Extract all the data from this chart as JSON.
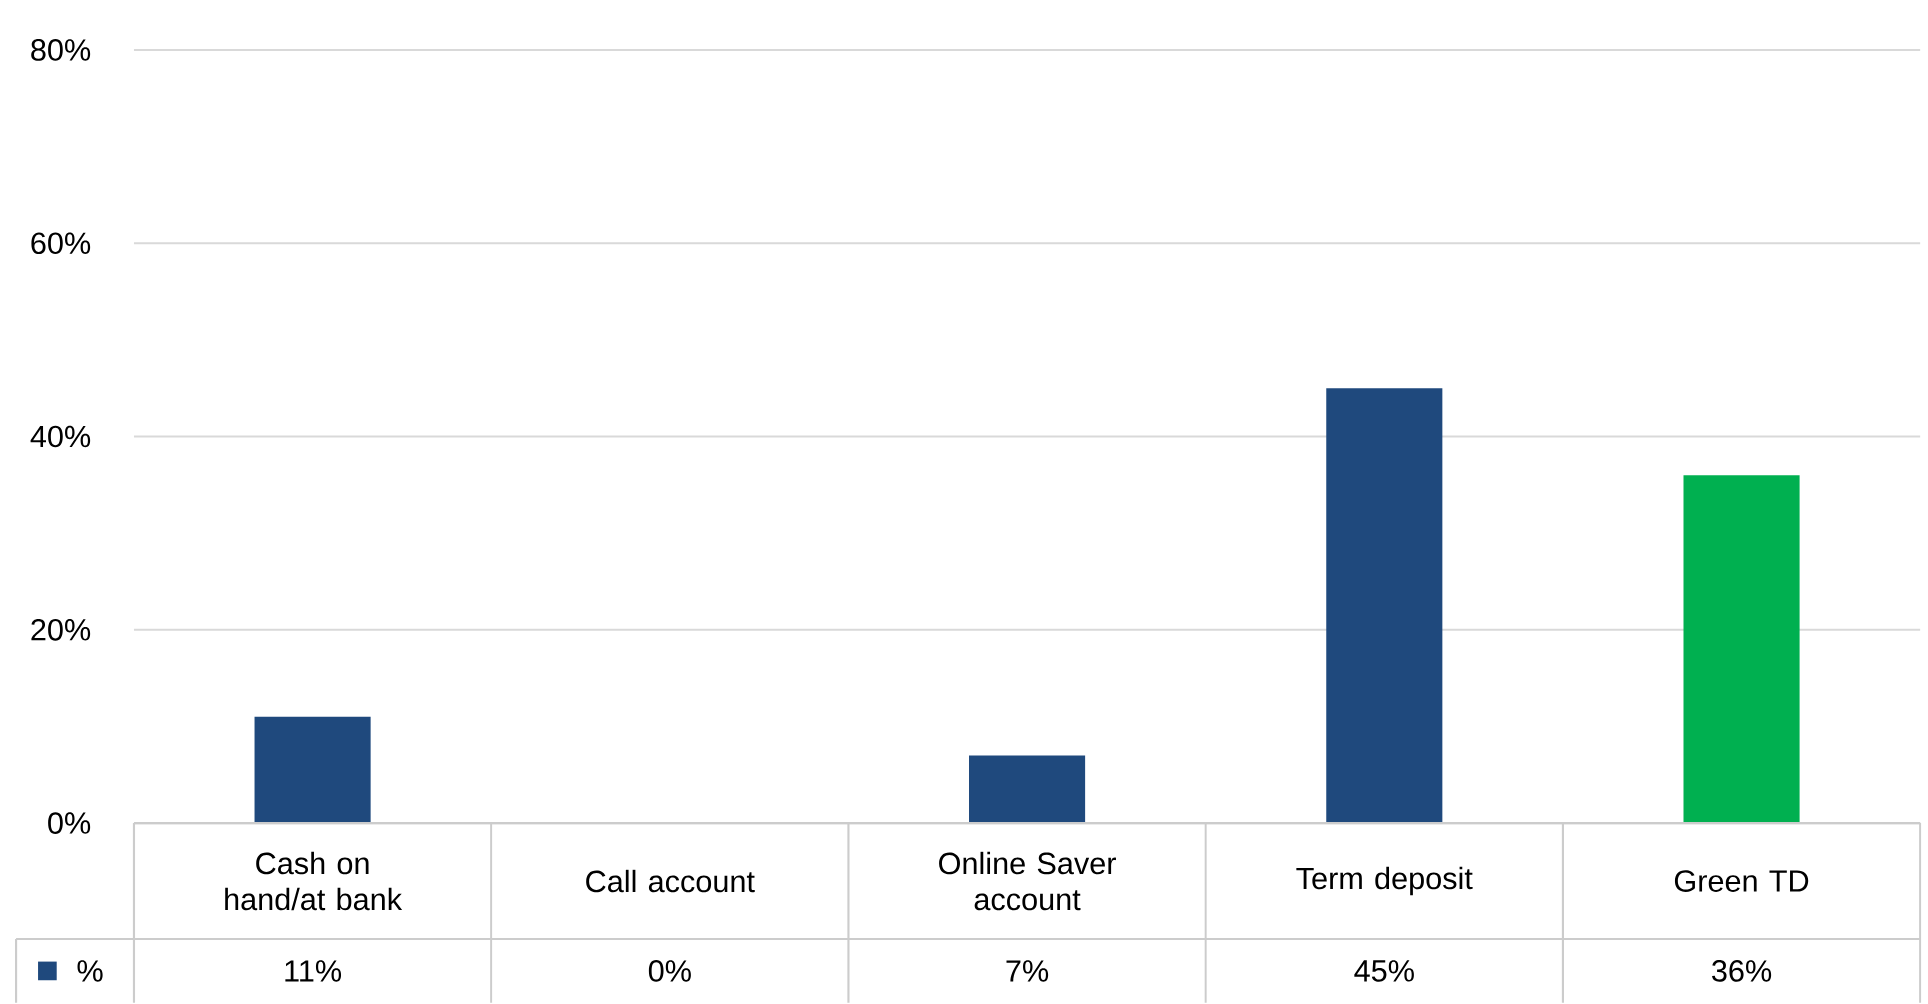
{
  "chart_data": {
    "type": "bar",
    "categories": [
      "Cash on hand/at bank",
      "Call account",
      "Online Saver account",
      "Term deposit",
      "Green TD"
    ],
    "series": [
      {
        "name": "%",
        "color": "#1f497d",
        "colors": [
          "#1f497d",
          "#1f497d",
          "#1f497d",
          "#1f497d",
          "#00b050"
        ],
        "values": [
          11,
          0,
          7,
          45,
          36
        ],
        "value_labels": [
          "11%",
          "0%",
          "7%",
          "45%",
          "36%"
        ]
      }
    ],
    "ylim": [
      0,
      80
    ],
    "yticks": [
      {
        "value": 0,
        "label": "0%"
      },
      {
        "value": 20,
        "label": "20%"
      },
      {
        "value": 40,
        "label": "40%"
      },
      {
        "value": 60,
        "label": "60%"
      },
      {
        "value": 80,
        "label": "80%"
      }
    ],
    "grid": "y",
    "legend": "bottom"
  }
}
